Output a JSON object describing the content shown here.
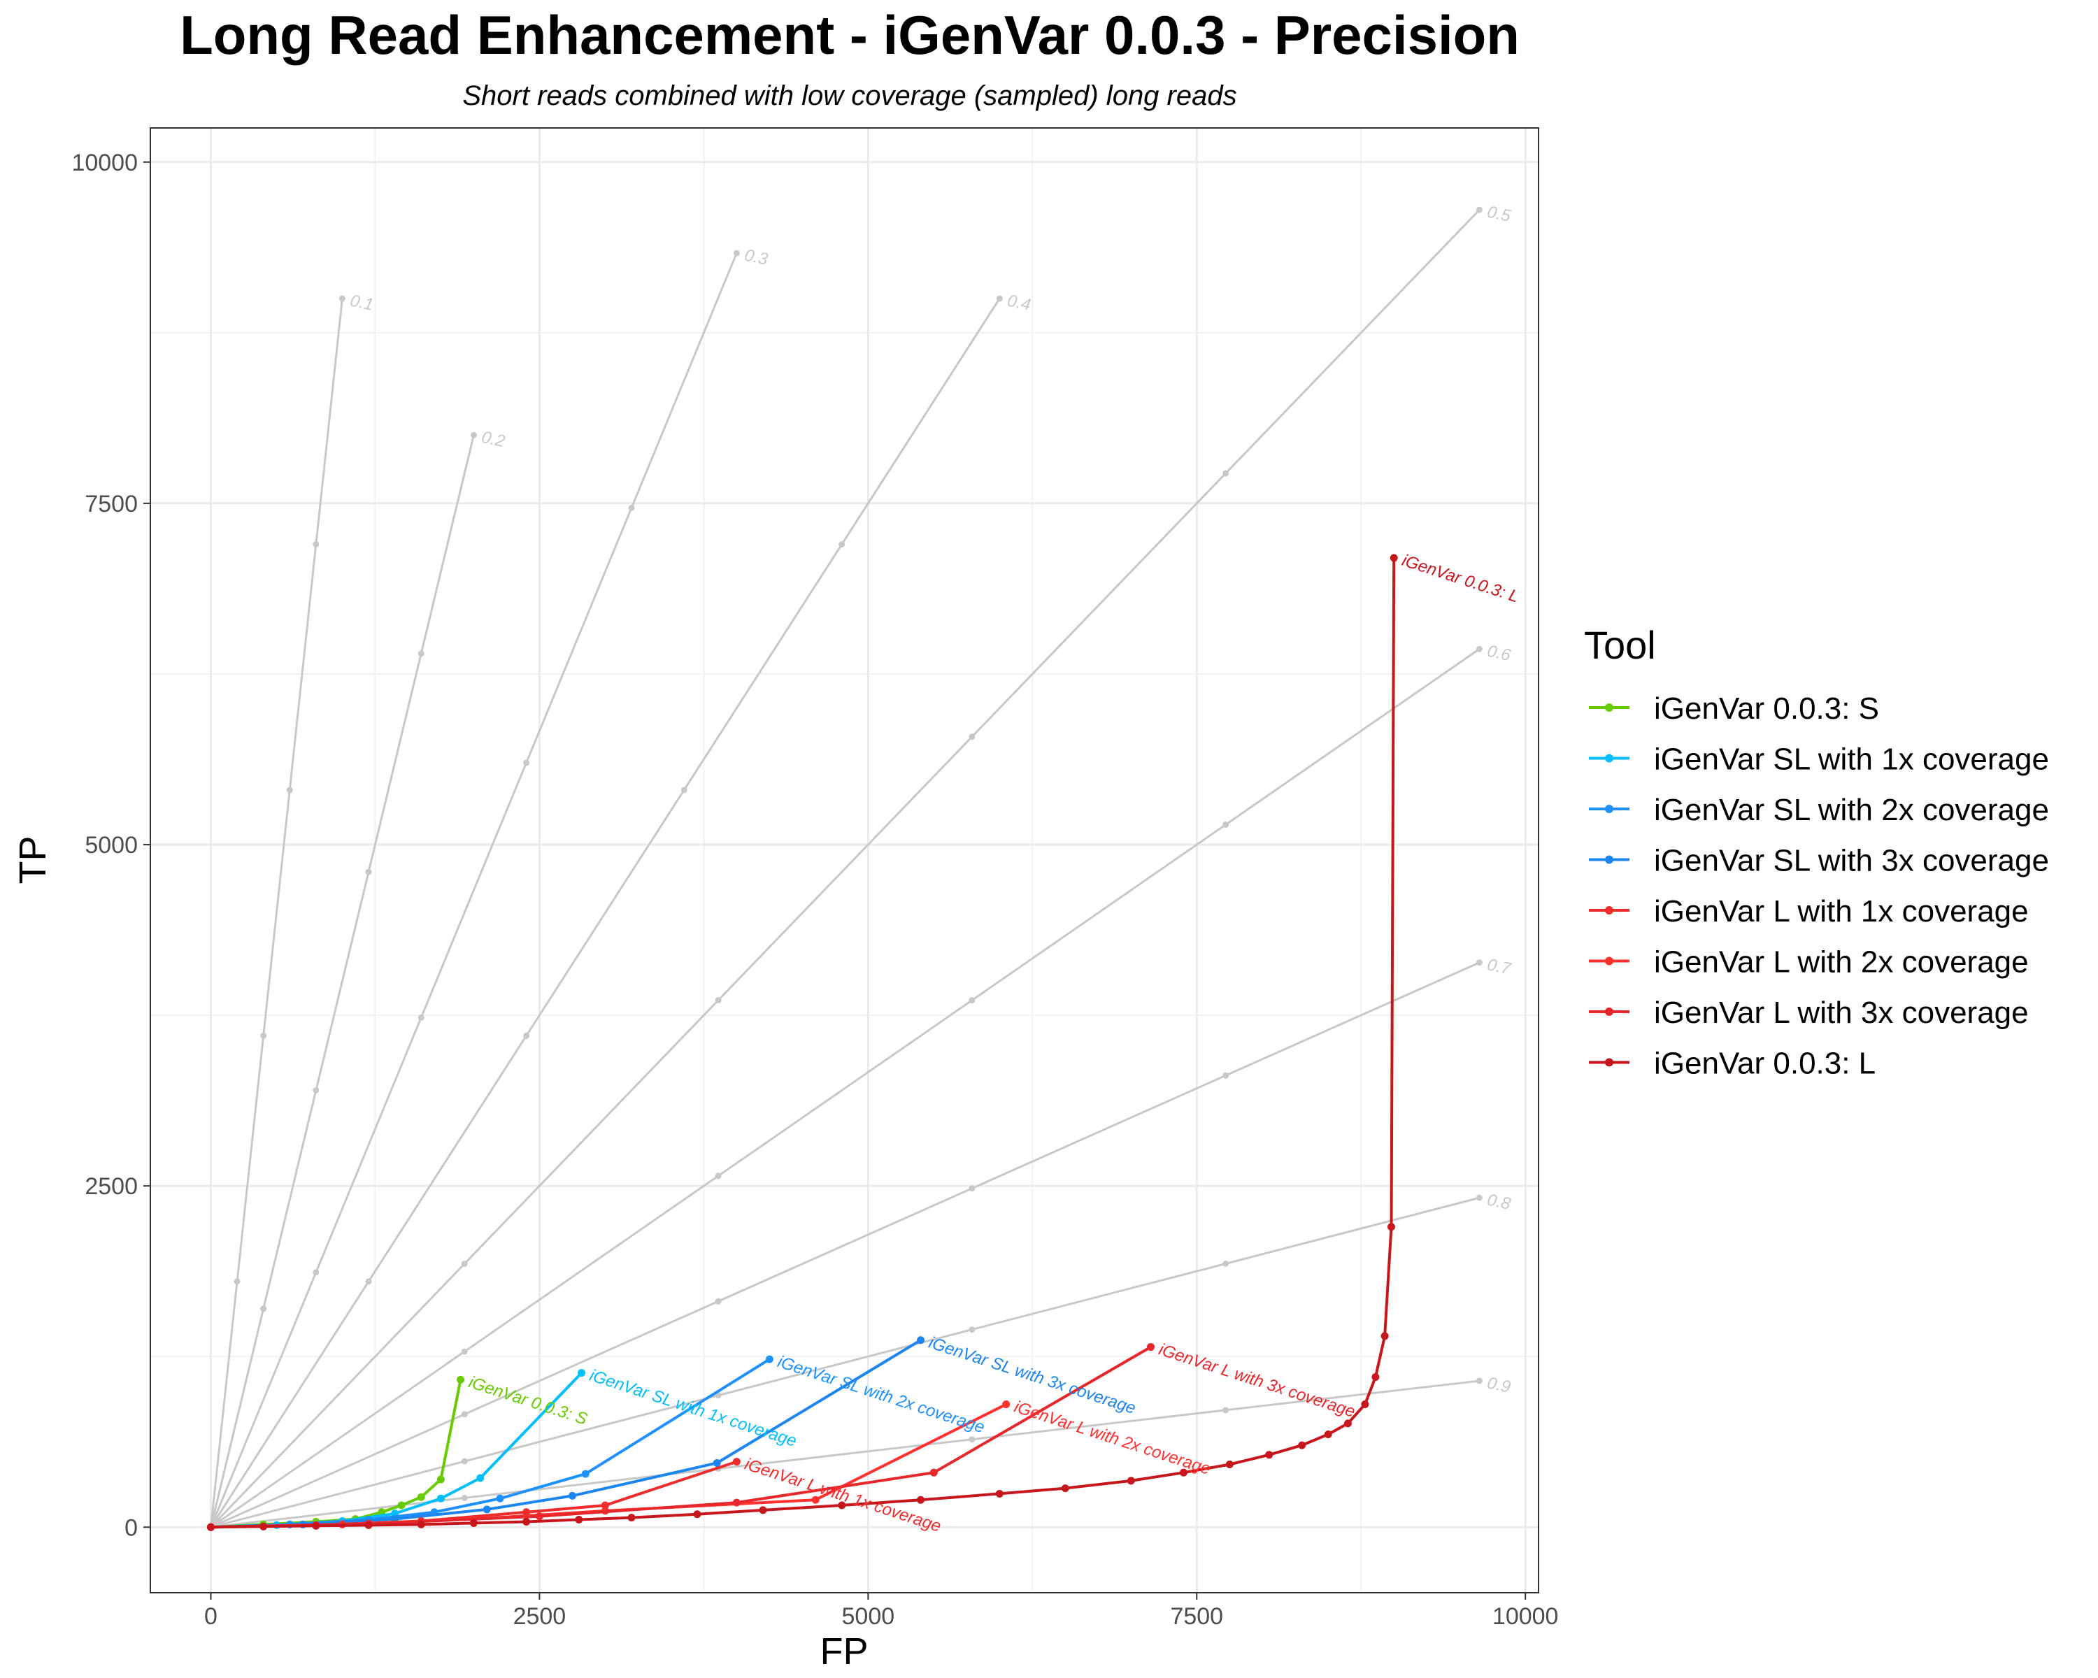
{
  "chart_data": {
    "type": "line",
    "title": "Long Read Enhancement - iGenVar 0.0.3 - Precision",
    "subtitle": "Short reads combined with low coverage (sampled) long reads",
    "xlabel": "FP",
    "ylabel": "TP",
    "xlim": [
      -460,
      10100
    ],
    "ylim": [
      -480,
      10250
    ],
    "xticks": [
      0,
      2500,
      5000,
      7500,
      10000
    ],
    "yticks": [
      0,
      2500,
      5000,
      7500,
      10000
    ],
    "grid": true,
    "legend": {
      "title": "Tool",
      "placement": "right"
    },
    "precision_isolines": [
      {
        "label": "0.1",
        "end": [
          1000,
          9000
        ]
      },
      {
        "label": "0.2",
        "end": [
          2000,
          8000
        ]
      },
      {
        "label": "0.3",
        "end": [
          4000,
          9333
        ]
      },
      {
        "label": "0.4",
        "end": [
          6000,
          9000
        ]
      },
      {
        "label": "0.5",
        "end": [
          9650,
          9650
        ]
      },
      {
        "label": "0.6",
        "end": [
          9650,
          6433
        ]
      },
      {
        "label": "0.7",
        "end": [
          9650,
          4136
        ]
      },
      {
        "label": "0.8",
        "end": [
          9650,
          2413
        ]
      },
      {
        "label": "0.9",
        "end": [
          9650,
          1072
        ]
      }
    ],
    "series": [
      {
        "name": "iGenVar 0.0.3: S",
        "color": "#66cc00",
        "points": [
          [
            0,
            0
          ],
          [
            400,
            20
          ],
          [
            800,
            40
          ],
          [
            1100,
            60
          ],
          [
            1300,
            110
          ],
          [
            1450,
            160
          ],
          [
            1600,
            220
          ],
          [
            1750,
            350
          ],
          [
            1900,
            1080
          ]
        ]
      },
      {
        "name": "iGenVar SL with 1x coverage",
        "color": "#00bfff",
        "points": [
          [
            0,
            0
          ],
          [
            500,
            15
          ],
          [
            1000,
            45
          ],
          [
            1400,
            100
          ],
          [
            1750,
            210
          ],
          [
            2050,
            360
          ],
          [
            2820,
            1130
          ]
        ]
      },
      {
        "name": "iGenVar SL with 2x coverage",
        "color": "#1e90ff",
        "points": [
          [
            0,
            0
          ],
          [
            600,
            20
          ],
          [
            1200,
            55
          ],
          [
            1700,
            110
          ],
          [
            2200,
            210
          ],
          [
            2850,
            390
          ],
          [
            4250,
            1230
          ]
        ]
      },
      {
        "name": "iGenVar SL with 3x coverage",
        "color": "#1c86ee",
        "points": [
          [
            0,
            0
          ],
          [
            700,
            20
          ],
          [
            1400,
            60
          ],
          [
            2100,
            130
          ],
          [
            2750,
            230
          ],
          [
            3850,
            470
          ],
          [
            5400,
            1370
          ]
        ]
      },
      {
        "name": "iGenVar L with 1x coverage",
        "color": "#ee2c2c",
        "points": [
          [
            0,
            0
          ],
          [
            800,
            15
          ],
          [
            1600,
            45
          ],
          [
            2400,
            110
          ],
          [
            3000,
            160
          ],
          [
            4000,
            480
          ]
        ]
      },
      {
        "name": "iGenVar L with 2x coverage",
        "color": "#ff3030",
        "points": [
          [
            0,
            0
          ],
          [
            1000,
            20
          ],
          [
            2000,
            60
          ],
          [
            3000,
            120
          ],
          [
            4600,
            200
          ],
          [
            6050,
            900
          ]
        ]
      },
      {
        "name": "iGenVar L with 3x coverage",
        "color": "#e8272b",
        "points": [
          [
            0,
            0
          ],
          [
            1200,
            25
          ],
          [
            2500,
            80
          ],
          [
            4000,
            180
          ],
          [
            5500,
            400
          ],
          [
            7150,
            1320
          ]
        ]
      },
      {
        "name": "iGenVar 0.0.3: L",
        "color": "#c8161d",
        "points": [
          [
            0,
            0
          ],
          [
            400,
            5
          ],
          [
            800,
            10
          ],
          [
            1200,
            15
          ],
          [
            1600,
            20
          ],
          [
            2000,
            30
          ],
          [
            2400,
            40
          ],
          [
            2800,
            55
          ],
          [
            3200,
            70
          ],
          [
            3700,
            95
          ],
          [
            4200,
            125
          ],
          [
            4800,
            160
          ],
          [
            5400,
            200
          ],
          [
            6000,
            245
          ],
          [
            6500,
            285
          ],
          [
            7000,
            340
          ],
          [
            7400,
            400
          ],
          [
            7750,
            460
          ],
          [
            8050,
            530
          ],
          [
            8300,
            600
          ],
          [
            8500,
            680
          ],
          [
            8650,
            760
          ],
          [
            8780,
            900
          ],
          [
            8860,
            1100
          ],
          [
            8930,
            1400
          ],
          [
            8980,
            2200
          ],
          [
            9000,
            7100
          ]
        ]
      }
    ],
    "series_labels": [
      {
        "text": "iGenVar 0.0.3: S",
        "series": 0
      },
      {
        "text": "iGenVar SL with 1x coverage",
        "series": 1
      },
      {
        "text": "iGenVar SL with 2x coverage",
        "series": 2
      },
      {
        "text": "iGenVar SL with 3x coverage",
        "series": 3
      },
      {
        "text": "iGenVar L with 1x coverage",
        "series": 4
      },
      {
        "text": "iGenVar L with 2x coverage",
        "series": 5
      },
      {
        "text": "iGenVar L with 3x coverage",
        "series": 6
      },
      {
        "text": "iGenVar 0.0.3: L",
        "series": 7
      }
    ]
  }
}
